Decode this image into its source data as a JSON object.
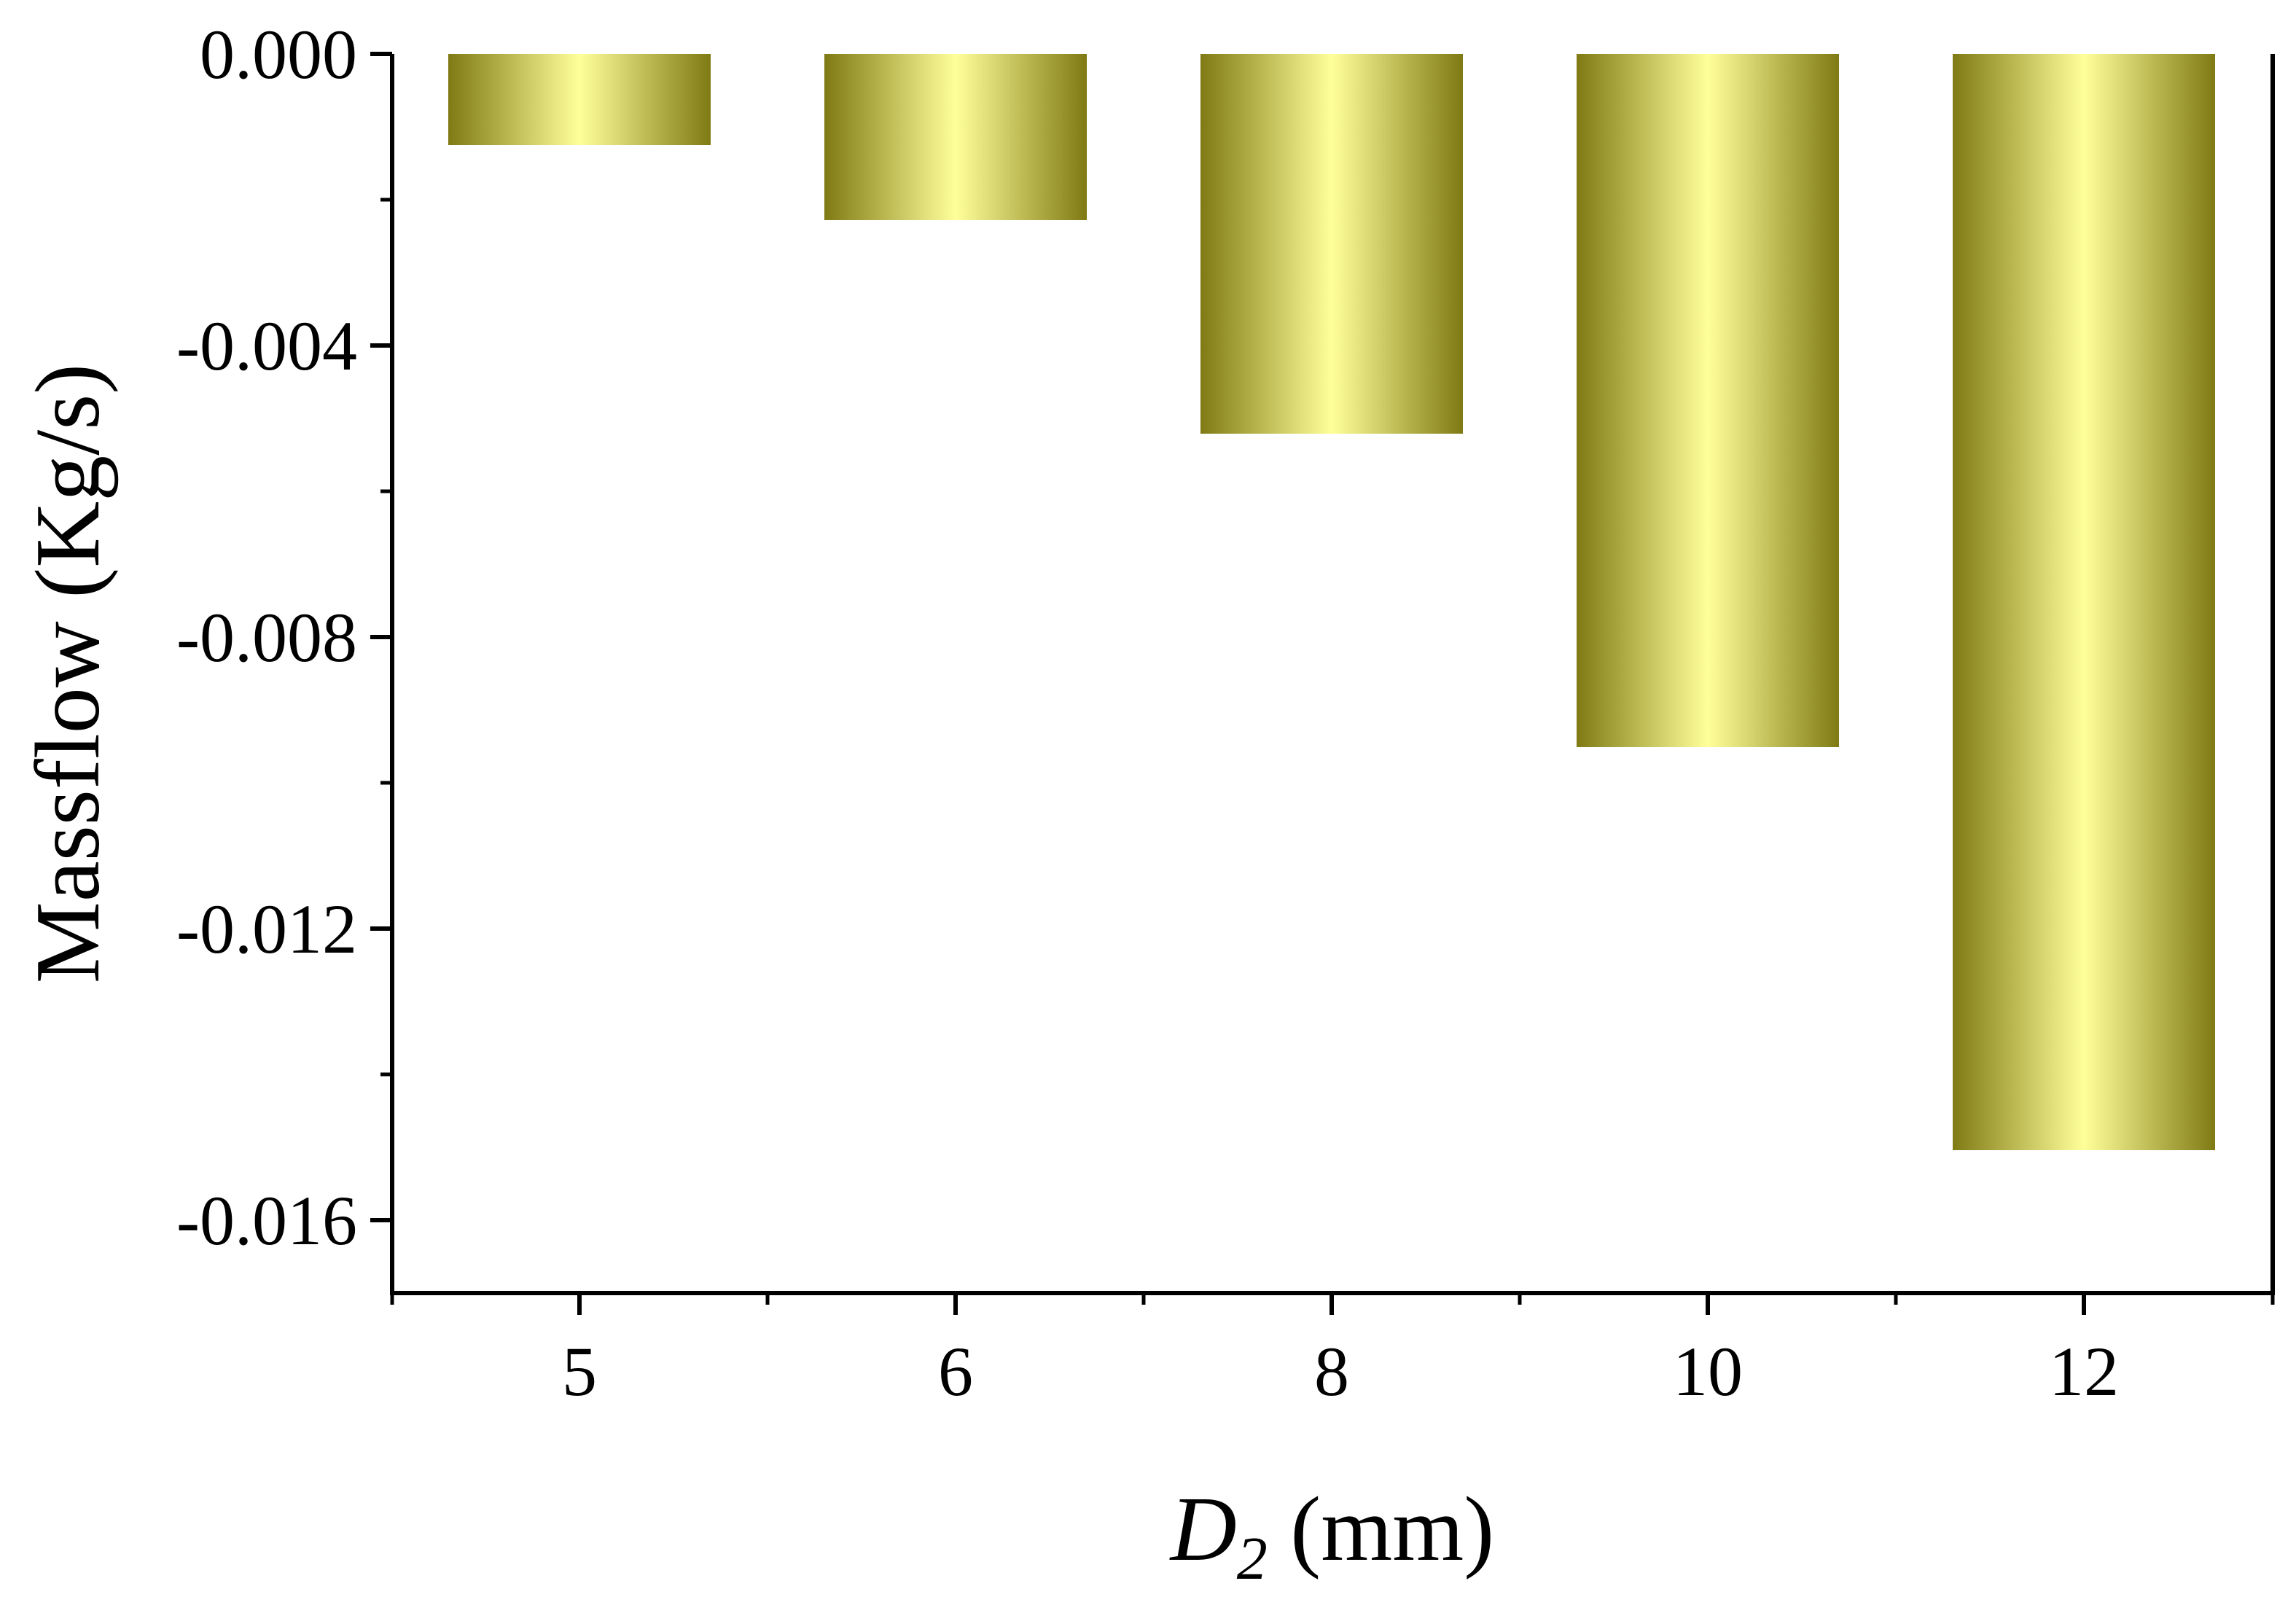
{
  "chart_data": {
    "type": "bar",
    "categories": [
      "5",
      "6",
      "8",
      "10",
      "12"
    ],
    "values": [
      -0.00125,
      -0.00228,
      -0.00521,
      -0.00951,
      -0.01504
    ],
    "xlabel": {
      "symbol": "D",
      "subscript": "2",
      "unit": " (mm)"
    },
    "ylabel": "Massflow (Kg/s)",
    "ylim": [
      -0.017,
      0.0
    ],
    "yticks": [
      0.0,
      -0.004,
      -0.008,
      -0.012,
      -0.016
    ],
    "ytick_labels": [
      "0.000",
      "-0.004",
      "-0.008",
      "-0.012",
      "-0.016"
    ],
    "grid": false,
    "legend": "none",
    "bar_gradient": {
      "edge": "#7f7a14",
      "center": "#ffff99"
    }
  }
}
